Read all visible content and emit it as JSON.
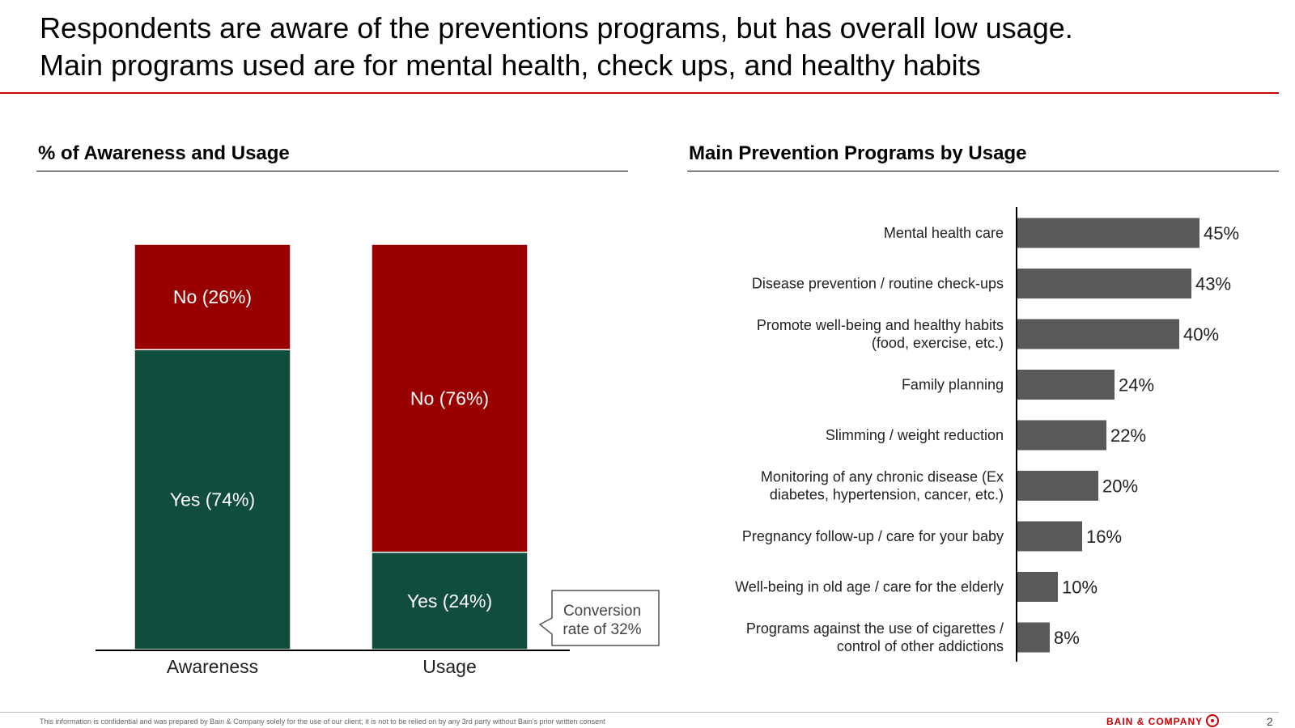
{
  "title": {
    "line1": "Respondents are aware of the preventions programs, but has overall low usage.",
    "line2": "Main programs used are for mental health, check ups, and healthy habits"
  },
  "left_section_title": "% of Awareness and Usage",
  "right_section_title": "Main Prevention Programs by Usage",
  "callout": {
    "line1": "Conversion",
    "line2": "rate of 32%"
  },
  "footer": {
    "disclaimer": "This information is confidential and was prepared by Bain & Company solely for the use of our client; it is not to be relied on by any 3rd party without Bain's prior written consent",
    "brand": "BAIN & COMPANY",
    "page_number": "2"
  },
  "colors": {
    "yes": "#114d3d",
    "no": "#990000",
    "bar": "#595959",
    "accent": "#cc0000"
  },
  "chart_data": [
    {
      "type": "bar",
      "stacked": true,
      "categories": [
        "Awareness",
        "Usage"
      ],
      "series": [
        {
          "name": "Yes",
          "values": [
            74,
            24
          ],
          "labels": [
            "Yes (74%)",
            "Yes (24%)"
          ]
        },
        {
          "name": "No",
          "values": [
            26,
            76
          ],
          "labels": [
            "No (26%)",
            "No (76%)"
          ]
        }
      ],
      "ylim": [
        0,
        100
      ]
    },
    {
      "type": "bar",
      "orientation": "horizontal",
      "categories": [
        [
          "Mental health care"
        ],
        [
          "Disease prevention / routine check-ups"
        ],
        [
          "Promote well-being and healthy habits",
          "(food, exercise, etc.)"
        ],
        [
          "Family planning"
        ],
        [
          "Slimming / weight reduction"
        ],
        [
          "Monitoring of any chronic disease (Ex",
          "diabetes, hypertension, cancer, etc.)"
        ],
        [
          "Pregnancy follow-up / care for your baby"
        ],
        [
          "Well-being in old age / care for the elderly"
        ],
        [
          "Programs against the use of cigarettes /",
          "control of other addictions"
        ]
      ],
      "values": [
        45,
        43,
        40,
        24,
        22,
        20,
        16,
        10,
        8
      ],
      "value_labels": [
        "45%",
        "43%",
        "40%",
        "24%",
        "22%",
        "20%",
        "16%",
        "10%",
        "8%"
      ],
      "xlim": [
        0,
        100
      ]
    }
  ]
}
